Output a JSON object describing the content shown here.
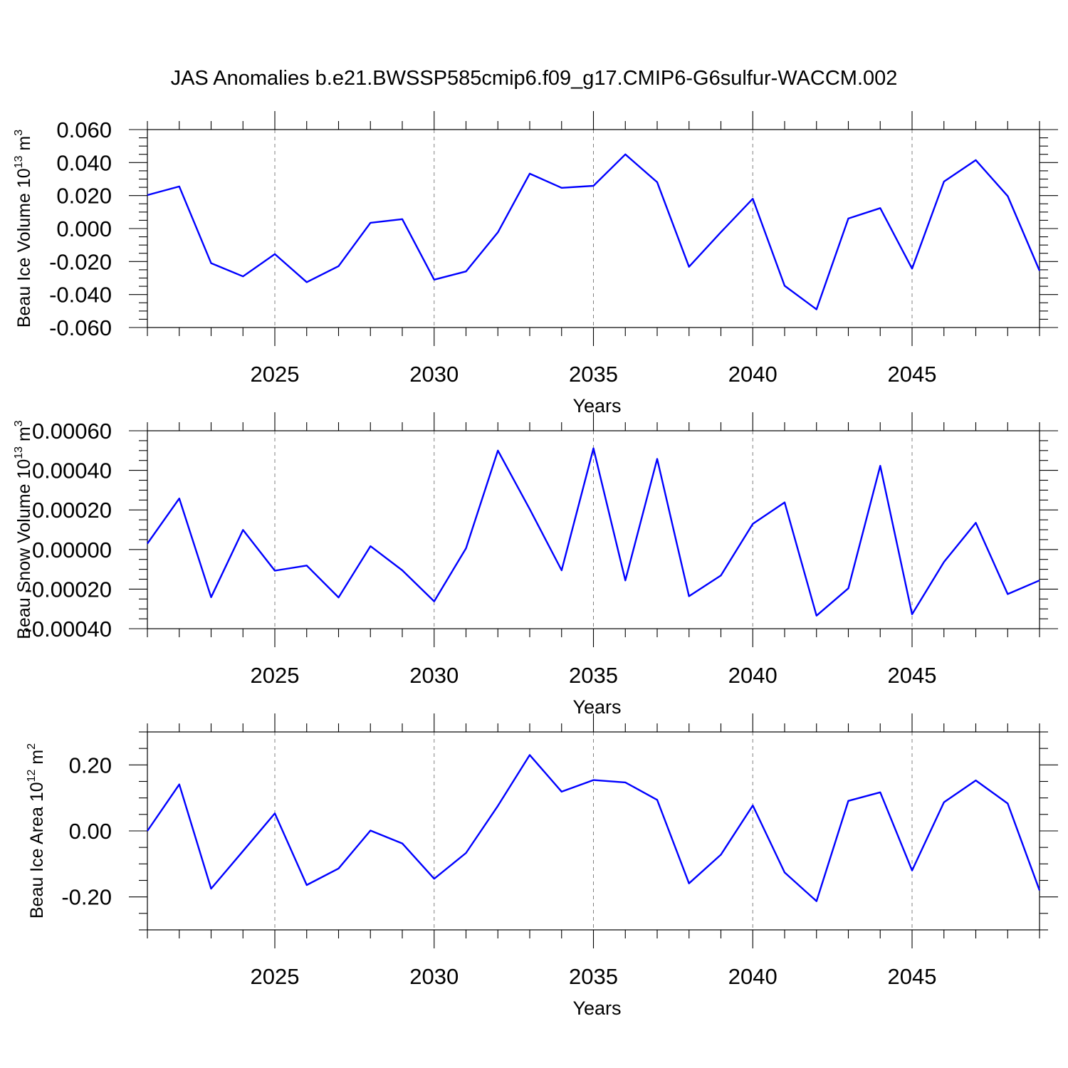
{
  "title": "JAS Anomalies b.e21.BWSSP585cmip6.f09_g17.CMIP6-G6sulfur-WACCM.002",
  "colors": {
    "line": "#0000ff",
    "frame": "#000000",
    "grid": "#808080"
  },
  "chart_data": [
    {
      "type": "line",
      "ylabel": {
        "base": "Beau Ice Volume 10",
        "exp": "13",
        "unit": " m",
        "unit_exp": "3"
      },
      "xlabel": "Years",
      "xlim": [
        2021,
        2049
      ],
      "ylim": [
        -0.06,
        0.06
      ],
      "yticks": [
        -0.06,
        -0.04,
        -0.02,
        0.0,
        0.02,
        0.04,
        0.06
      ],
      "ytick_labels": [
        "-0.060",
        "-0.040",
        "-0.020",
        "0.000",
        "0.020",
        "0.040",
        "0.060"
      ],
      "yminor_step": 0.005,
      "xticks": [
        2025,
        2030,
        2035,
        2040,
        2045
      ],
      "xtick_labels": [
        "2025",
        "2030",
        "2035",
        "2040",
        "2045"
      ],
      "x": [
        2021,
        2022,
        2023,
        2024,
        2025,
        2026,
        2027,
        2028,
        2029,
        2030,
        2031,
        2032,
        2033,
        2034,
        2035,
        2036,
        2037,
        2038,
        2039,
        2040,
        2041,
        2042,
        2043,
        2044,
        2045,
        2046,
        2047,
        2048,
        2049
      ],
      "values": [
        0.0203,
        0.0255,
        -0.021,
        -0.029,
        -0.0155,
        -0.0325,
        -0.0228,
        0.0035,
        0.0057,
        -0.031,
        -0.026,
        -0.0023,
        0.0333,
        0.0247,
        0.0259,
        0.045,
        0.0281,
        -0.0232,
        -0.0022,
        0.0181,
        -0.0347,
        -0.049,
        0.0061,
        0.0124,
        -0.0243,
        0.0285,
        0.0415,
        0.0197,
        -0.0255
      ]
    },
    {
      "type": "line",
      "ylabel": {
        "base": "Beau Snow Volume 10",
        "exp": "13",
        "unit": " m",
        "unit_exp": "3"
      },
      "xlabel": "Years",
      "xlim": [
        2021,
        2049
      ],
      "ylim": [
        -0.0004,
        0.0006
      ],
      "yticks": [
        -0.0004,
        -0.0002,
        0.0,
        0.0002,
        0.0004,
        0.0006
      ],
      "ytick_labels": [
        "-0.00040",
        "-0.00020",
        "0.00000",
        "0.00020",
        "0.00040",
        "0.00060"
      ],
      "yminor_step": 5e-05,
      "xticks": [
        2025,
        2030,
        2035,
        2040,
        2045
      ],
      "xtick_labels": [
        "2025",
        "2030",
        "2035",
        "2040",
        "2045"
      ],
      "x": [
        2021,
        2022,
        2023,
        2024,
        2025,
        2026,
        2027,
        2028,
        2029,
        2030,
        2031,
        2032,
        2033,
        2034,
        2035,
        2036,
        2037,
        2038,
        2039,
        2040,
        2041,
        2042,
        2043,
        2044,
        2045,
        2046,
        2047,
        2048,
        2049
      ],
      "values": [
        3e-05,
        0.000258,
        -0.000241,
        9.9e-05,
        -0.000107,
        -8.1e-05,
        -0.000242,
        1.7e-05,
        -0.000105,
        -0.000262,
        6e-06,
        0.0005,
        0.000204,
        -0.000105,
        0.000511,
        -0.000156,
        0.000458,
        -0.000236,
        -0.000131,
        0.00013,
        0.000238,
        -0.000334,
        -0.000196,
        0.000423,
        -0.000327,
        -6.3e-05,
        0.000135,
        -0.000225,
        -0.000156
      ]
    },
    {
      "type": "line",
      "ylabel": {
        "base": "Beau Ice Area 10",
        "exp": "12",
        "unit": " m",
        "unit_exp": "2"
      },
      "xlabel": "Years",
      "xlim": [
        2021,
        2049
      ],
      "ylim": [
        -0.3,
        0.3
      ],
      "yticks": [
        -0.2,
        0.0,
        0.2
      ],
      "ytick_labels": [
        "-0.20",
        "0.00",
        "0.20"
      ],
      "yminor_step": 0.05,
      "xticks": [
        2025,
        2030,
        2035,
        2040,
        2045
      ],
      "xtick_labels": [
        "2025",
        "2030",
        "2035",
        "2040",
        "2045"
      ],
      "x": [
        2021,
        2022,
        2023,
        2024,
        2025,
        2026,
        2027,
        2028,
        2029,
        2030,
        2031,
        2032,
        2033,
        2034,
        2035,
        2036,
        2037,
        2038,
        2039,
        2040,
        2041,
        2042,
        2043,
        2044,
        2045,
        2046,
        2047,
        2048,
        2049
      ],
      "values": [
        0.0,
        0.141,
        -0.175,
        -0.061,
        0.053,
        -0.164,
        -0.114,
        0.001,
        -0.038,
        -0.145,
        -0.067,
        0.076,
        0.23,
        0.119,
        0.154,
        0.147,
        0.094,
        -0.159,
        -0.072,
        0.077,
        -0.126,
        -0.213,
        0.091,
        0.117,
        -0.12,
        0.087,
        0.153,
        0.083,
        -0.18
      ]
    }
  ]
}
